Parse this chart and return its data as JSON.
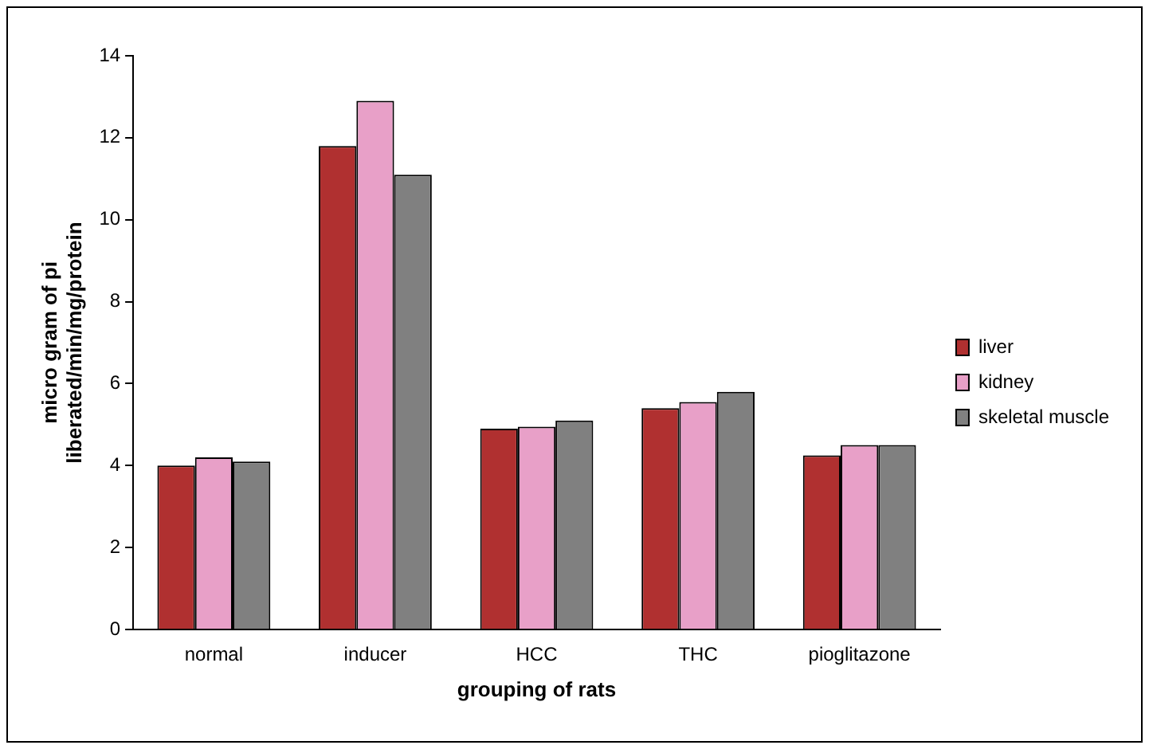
{
  "chart_data": {
    "type": "bar",
    "xlabel": "grouping of rats",
    "ylabel": "micro gram of pi liberated/min/mg/protein",
    "categories": [
      "normal",
      "inducer",
      "HCC",
      "THC",
      "pioglitazone"
    ],
    "series": [
      {
        "name": "liver",
        "color": "#b03030",
        "values": [
          4.0,
          11.8,
          4.9,
          5.4,
          4.25
        ]
      },
      {
        "name": "kidney",
        "color": "#e8a0c8",
        "values": [
          4.2,
          12.9,
          4.95,
          5.55,
          4.5
        ]
      },
      {
        "name": "skeletal muscle",
        "color": "#808080",
        "values": [
          4.1,
          11.1,
          5.1,
          5.8,
          4.5
        ]
      }
    ],
    "ylim": [
      0,
      14
    ],
    "yticks": [
      0,
      2,
      4,
      6,
      8,
      10,
      12,
      14
    ],
    "grid": false,
    "legend": "right"
  }
}
